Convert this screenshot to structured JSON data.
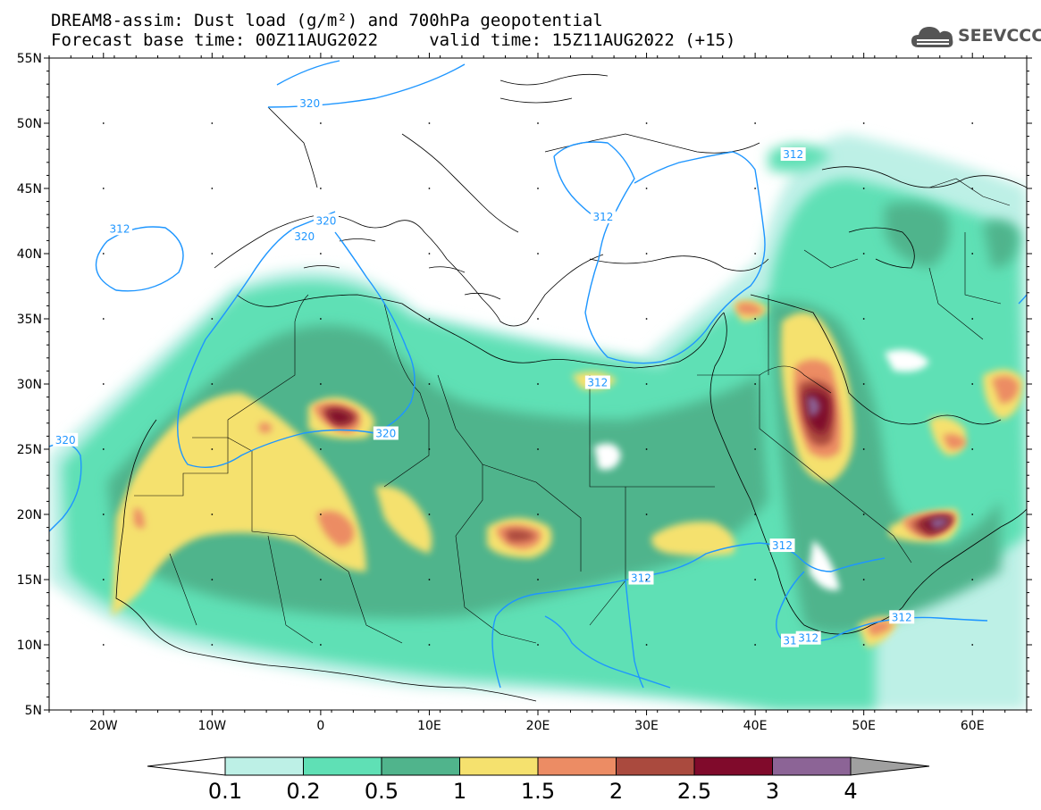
{
  "title_line1": "DREAM8-assim: Dust load (g/m²) and 700hPa geopotential",
  "title_line2": "Forecast base time: 00Z11AUG2022     valid time: 15Z11AUG2022 (+15)",
  "logo": {
    "icon": "cloud-logo-icon",
    "text": "SEEVCCC"
  },
  "axes": {
    "lat_labels": [
      "55N",
      "50N",
      "45N",
      "40N",
      "35N",
      "30N",
      "25N",
      "20N",
      "15N",
      "10N",
      "5N"
    ],
    "lon_labels": [
      "20W",
      "10W",
      "0",
      "10E",
      "20E",
      "30E",
      "40E",
      "50E",
      "60E"
    ]
  },
  "contour_labels": [
    {
      "text": "320",
      "lon": -1,
      "lat": 51.5
    },
    {
      "text": "320",
      "lon": 0.5,
      "lat": 42.5
    },
    {
      "text": "320",
      "lon": -1.5,
      "lat": 41.3
    },
    {
      "text": "312",
      "lon": -18.5,
      "lat": 41.9
    },
    {
      "text": "320",
      "lon": -23.5,
      "lat": 25.7
    },
    {
      "text": "320",
      "lon": 6,
      "lat": 26.2
    },
    {
      "text": "312",
      "lon": 25.5,
      "lat": 30.1
    },
    {
      "text": "312",
      "lon": 26,
      "lat": 42.8
    },
    {
      "text": "312",
      "lon": 43.5,
      "lat": 47.6
    },
    {
      "text": "312",
      "lon": 29.5,
      "lat": 15.1
    },
    {
      "text": "312",
      "lon": 42.5,
      "lat": 17.6
    },
    {
      "text": "312",
      "lon": 53.5,
      "lat": 12.1
    },
    {
      "text": "31",
      "lon": 43.2,
      "lat": 10.3
    },
    {
      "text": "312",
      "lon": 44.9,
      "lat": 10.5
    }
  ],
  "colorbar": {
    "labels": [
      "0.1",
      "0.2",
      "0.5",
      "1",
      "1.5",
      "2",
      "2.5",
      "3",
      "4"
    ],
    "colors": [
      "#ffffff",
      "#bdf0e6",
      "#5fe0b5",
      "#50b48c",
      "#f5e16e",
      "#ec8c64",
      "#aa4a3e",
      "#800a2b",
      "#8c6496",
      "#a0a0a0"
    ]
  }
}
